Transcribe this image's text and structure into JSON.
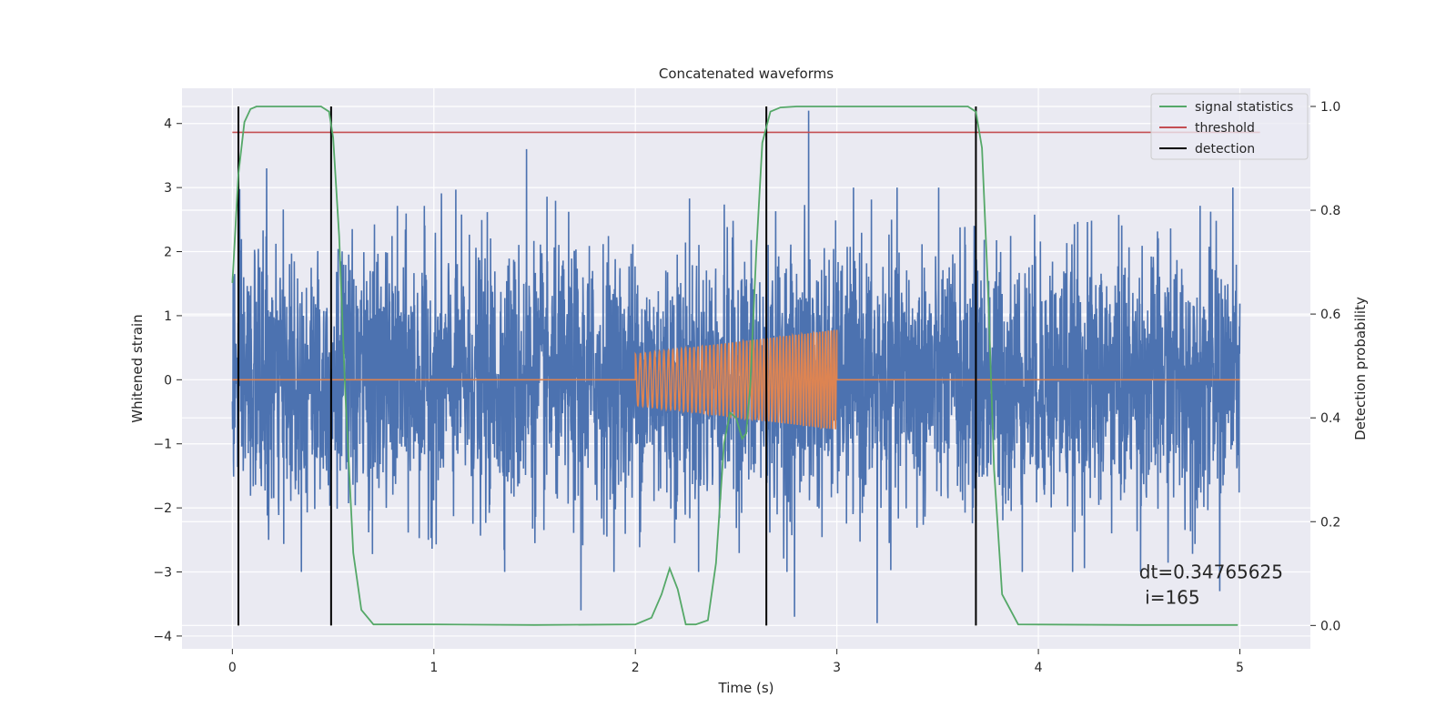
{
  "chart_data": {
    "type": "line",
    "title": "Concatenated waveforms",
    "xlabel": "Time (s)",
    "ylabel": "Whitened strain",
    "y2label": "Detection probability",
    "xlim": [
      -0.25,
      5.35
    ],
    "ylim": [
      -4.2,
      4.55
    ],
    "y2lim": [
      -0.045,
      1.035
    ],
    "xticks": [
      0,
      1,
      2,
      3,
      4,
      5
    ],
    "yticks": [
      -4,
      -3,
      -2,
      -1,
      0,
      1,
      2,
      3,
      4
    ],
    "y2ticks": [
      0.0,
      0.2,
      0.4,
      0.6,
      0.8,
      1.0
    ],
    "y2tick_labels": [
      "0.0",
      "0.2",
      "0.4",
      "0.6",
      "0.8",
      "1.0"
    ],
    "grid": true,
    "legend_position": "top-right",
    "colors": {
      "strain": "#4c72b0",
      "template": "#dd8452",
      "statistics": "#55a868",
      "threshold": "#c44e52",
      "detection": "#000000",
      "background": "#eaeaf2"
    },
    "strain_noise": {
      "x_range": [
        0,
        5
      ],
      "typical_amplitude": 1.0,
      "peak_points": [
        {
          "x": 0.17,
          "y": 3.0
        },
        {
          "x": 0.18,
          "y": -2.5
        },
        {
          "x": 0.17,
          "y": 3.3
        },
        {
          "x": 1.46,
          "y": 3.6
        },
        {
          "x": 1.73,
          "y": -3.6
        },
        {
          "x": 2.86,
          "y": 4.2
        },
        {
          "x": 2.79,
          "y": -3.7
        },
        {
          "x": 3.2,
          "y": -3.8
        },
        {
          "x": 4.9,
          "y": -3.3
        }
      ]
    },
    "template": {
      "name": "",
      "start": 2.0,
      "end": 3.0,
      "amplitude_start": 0.4,
      "amplitude_end": 0.78,
      "freq_start": 40,
      "freq_end": 72
    },
    "series": [
      {
        "name": "signal statistics",
        "axis": "right",
        "x": [
          0.0,
          0.03,
          0.06,
          0.09,
          0.12,
          0.2,
          0.35,
          0.44,
          0.48,
          0.5,
          0.53,
          0.56,
          0.6,
          0.64,
          0.7,
          1.0,
          1.5,
          2.0,
          2.08,
          2.13,
          2.17,
          2.21,
          2.25,
          2.3,
          2.36,
          2.4,
          2.44,
          2.47,
          2.5,
          2.53,
          2.55,
          2.57,
          2.6,
          2.63,
          2.67,
          2.72,
          2.8,
          3.0,
          3.5,
          3.65,
          3.69,
          3.72,
          3.75,
          3.78,
          3.82,
          3.9,
          4.5,
          4.99
        ],
        "y": [
          0.66,
          0.87,
          0.97,
          0.995,
          1.0,
          1.0,
          1.0,
          1.0,
          0.99,
          0.94,
          0.75,
          0.45,
          0.14,
          0.03,
          0.002,
          0.002,
          0.001,
          0.002,
          0.015,
          0.06,
          0.11,
          0.07,
          0.002,
          0.002,
          0.01,
          0.12,
          0.35,
          0.41,
          0.4,
          0.36,
          0.37,
          0.46,
          0.72,
          0.93,
          0.99,
          0.998,
          1.0,
          1.0,
          1.0,
          1.0,
          0.99,
          0.92,
          0.65,
          0.3,
          0.06,
          0.002,
          0.001,
          0.001
        ]
      },
      {
        "name": "threshold",
        "axis": "right",
        "x": [
          0.0,
          5.1
        ],
        "y": [
          0.95,
          0.95
        ]
      },
      {
        "name": "detection",
        "axis": "right",
        "positions": [
          0.03,
          0.49,
          2.65,
          3.69
        ],
        "y_range": [
          0.0,
          1.0
        ]
      }
    ],
    "annotation": {
      "line1": "dt=0.34765625",
      "line2": " i=165",
      "x": 4.5,
      "y": -3.0
    }
  }
}
